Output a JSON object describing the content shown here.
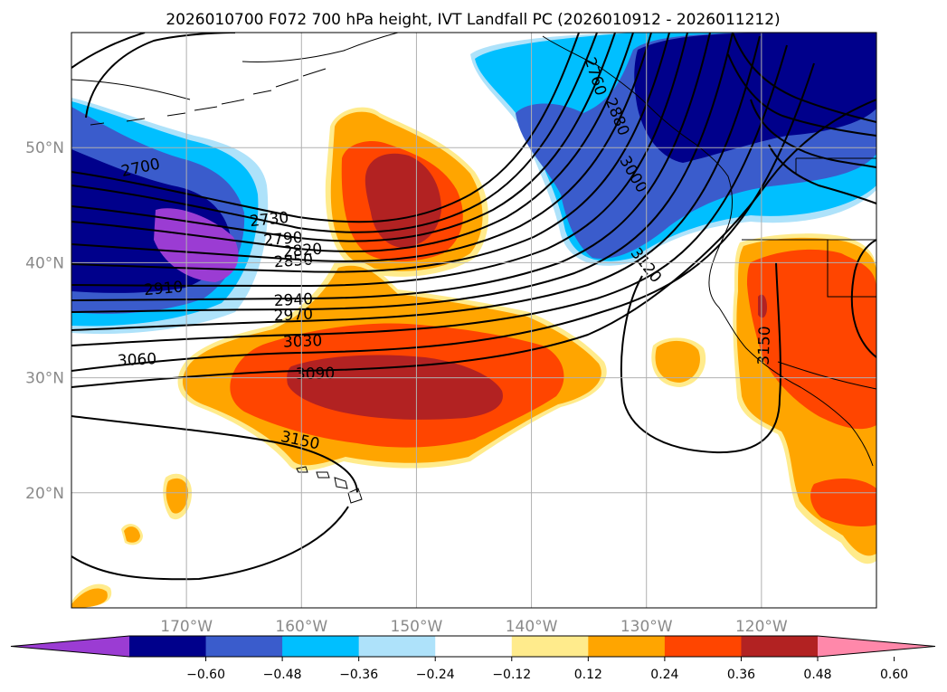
{
  "title": "2026010700 F072 700 hPa height, IVT Landfall PC (2026010912 - 2026011212)",
  "map": {
    "lon_range": [
      -180,
      -110
    ],
    "lat_range": [
      10,
      60
    ],
    "lat_ticks": [
      {
        "value": 50,
        "label": "50°N"
      },
      {
        "value": 40,
        "label": "40°N"
      },
      {
        "value": 30,
        "label": "30°N"
      },
      {
        "value": 20,
        "label": "20°N"
      }
    ],
    "lon_ticks": [
      {
        "value": -170,
        "label": "170°W"
      },
      {
        "value": -160,
        "label": "160°W"
      },
      {
        "value": -150,
        "label": "150°W"
      },
      {
        "value": -140,
        "label": "140°W"
      },
      {
        "value": -130,
        "label": "130°W"
      },
      {
        "value": -120,
        "label": "120°W"
      }
    ],
    "contour_labels": [
      {
        "text": "2700",
        "lon": -174,
        "lat": 48.3,
        "rot": 12
      },
      {
        "text": "2730",
        "lon": -162.8,
        "lat": 43.8,
        "rot": 6
      },
      {
        "text": "2790",
        "lon": -161.6,
        "lat": 42.1,
        "rot": 5
      },
      {
        "text": "2820",
        "lon": -159.9,
        "lat": 41.1,
        "rot": 5
      },
      {
        "text": "2850",
        "lon": -160.7,
        "lat": 40.2,
        "rot": 4
      },
      {
        "text": "2910",
        "lon": -172,
        "lat": 37.8,
        "rot": 5
      },
      {
        "text": "2940",
        "lon": -160.7,
        "lat": 36.8,
        "rot": 3
      },
      {
        "text": "2970",
        "lon": -160.7,
        "lat": 35.5,
        "rot": 3
      },
      {
        "text": "3030",
        "lon": -159.9,
        "lat": 33.2,
        "rot": 2
      },
      {
        "text": "3060",
        "lon": -174.3,
        "lat": 31.6,
        "rot": 3
      },
      {
        "text": "3090",
        "lon": -158.8,
        "lat": 30.4,
        "rot": 1
      },
      {
        "text": "3150",
        "lon": -160.1,
        "lat": 24.6,
        "rot": -12
      },
      {
        "text": "2760",
        "lon": -134.4,
        "lat": 56.2,
        "rot": -72
      },
      {
        "text": "2880",
        "lon": -132.5,
        "lat": 52.7,
        "rot": -68
      },
      {
        "text": "3000",
        "lon": -131.1,
        "lat": 47.7,
        "rot": -60
      },
      {
        "text": "3120",
        "lon": -130,
        "lat": 39.8,
        "rot": -52
      },
      {
        "text": "3150",
        "lon": -119.8,
        "lat": 32.8,
        "rot": 88
      }
    ]
  },
  "colorbar": {
    "colors": [
      "#9b3cd3",
      "#00008b",
      "#3a5ccc",
      "#00bfff",
      "#aee2fa",
      "#ffffff",
      "#ffeb8c",
      "#ffa500",
      "#ff4500",
      "#b22222",
      "#ff88aa"
    ],
    "tick_labels": [
      "−0.60",
      "−0.48",
      "−0.36",
      "−0.24",
      "−0.12",
      "0.12",
      "0.24",
      "0.36",
      "0.48",
      "0.60"
    ],
    "extend": "both"
  }
}
